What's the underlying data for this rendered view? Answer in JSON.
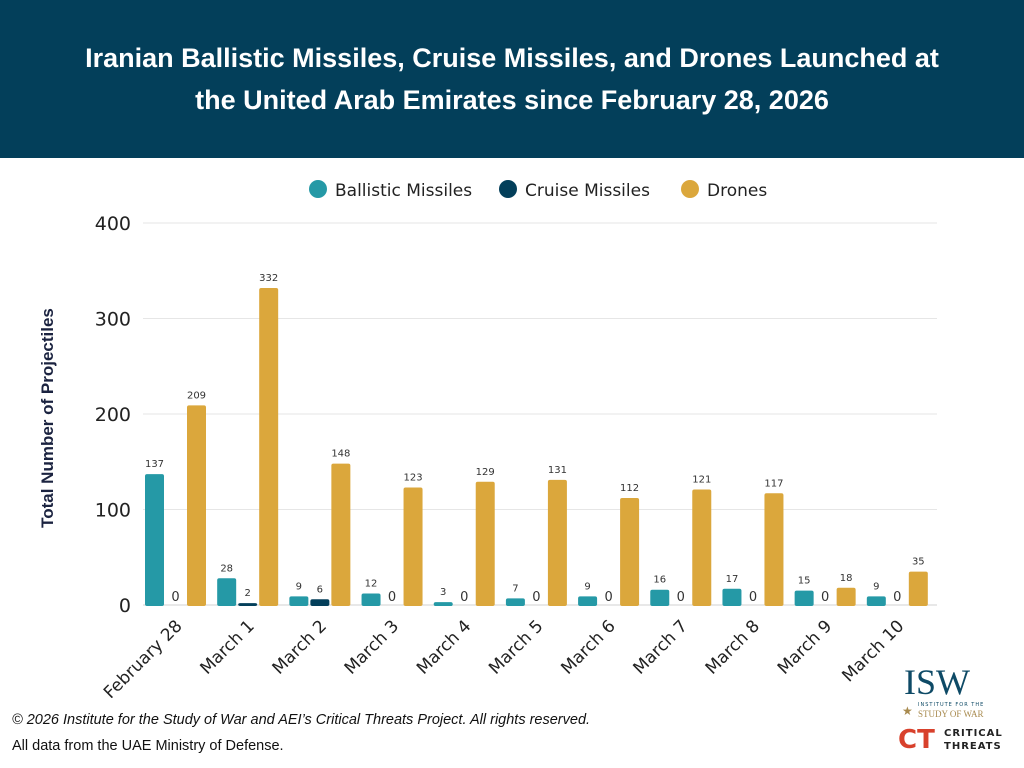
{
  "header": {
    "title": "Iranian Ballistic Missiles, Cruise Missiles, and Drones Launched at the United Arab Emirates since February 28, 2026"
  },
  "chart_data": {
    "type": "bar",
    "title": "Iranian Ballistic Missiles, Cruise Missiles, and Drones Launched at the United Arab Emirates since February 28, 2026",
    "ylabel": "Total Number of Projectiles",
    "xlabel": "",
    "ylim": [
      0,
      400
    ],
    "yticks": [
      0,
      100,
      200,
      300,
      400
    ],
    "grid": true,
    "legend": "top",
    "categories": [
      "February 28",
      "March 1",
      "March 2",
      "March 3",
      "March 4",
      "March 5",
      "March 6",
      "March 7",
      "March 8",
      "March 9",
      "March 10"
    ],
    "series": [
      {
        "name": "Ballistic Missiles",
        "color": "#2599a6",
        "values": [
          137,
          28,
          9,
          12,
          3,
          7,
          9,
          16,
          17,
          15,
          9
        ]
      },
      {
        "name": "Cruise Missiles",
        "color": "#033f5a",
        "values": [
          0,
          2,
          6,
          0,
          0,
          0,
          0,
          0,
          0,
          0,
          0
        ]
      },
      {
        "name": "Drones",
        "color": "#dba73c",
        "values": [
          209,
          332,
          148,
          123,
          129,
          131,
          112,
          121,
          117,
          18,
          35
        ]
      }
    ]
  },
  "footer": {
    "copyright": "© 2026 Institute for the Study of War and AEI’s Critical Threats Project. All rights reserved.",
    "source": "All data from the UAE Ministry of Defense."
  },
  "logos": {
    "isw": "ISW",
    "isw_sub1": "INSTITUTE FOR THE",
    "isw_sub2": "STUDY OF WAR",
    "ct1": "CRITICAL",
    "ct2": "THREATS"
  }
}
